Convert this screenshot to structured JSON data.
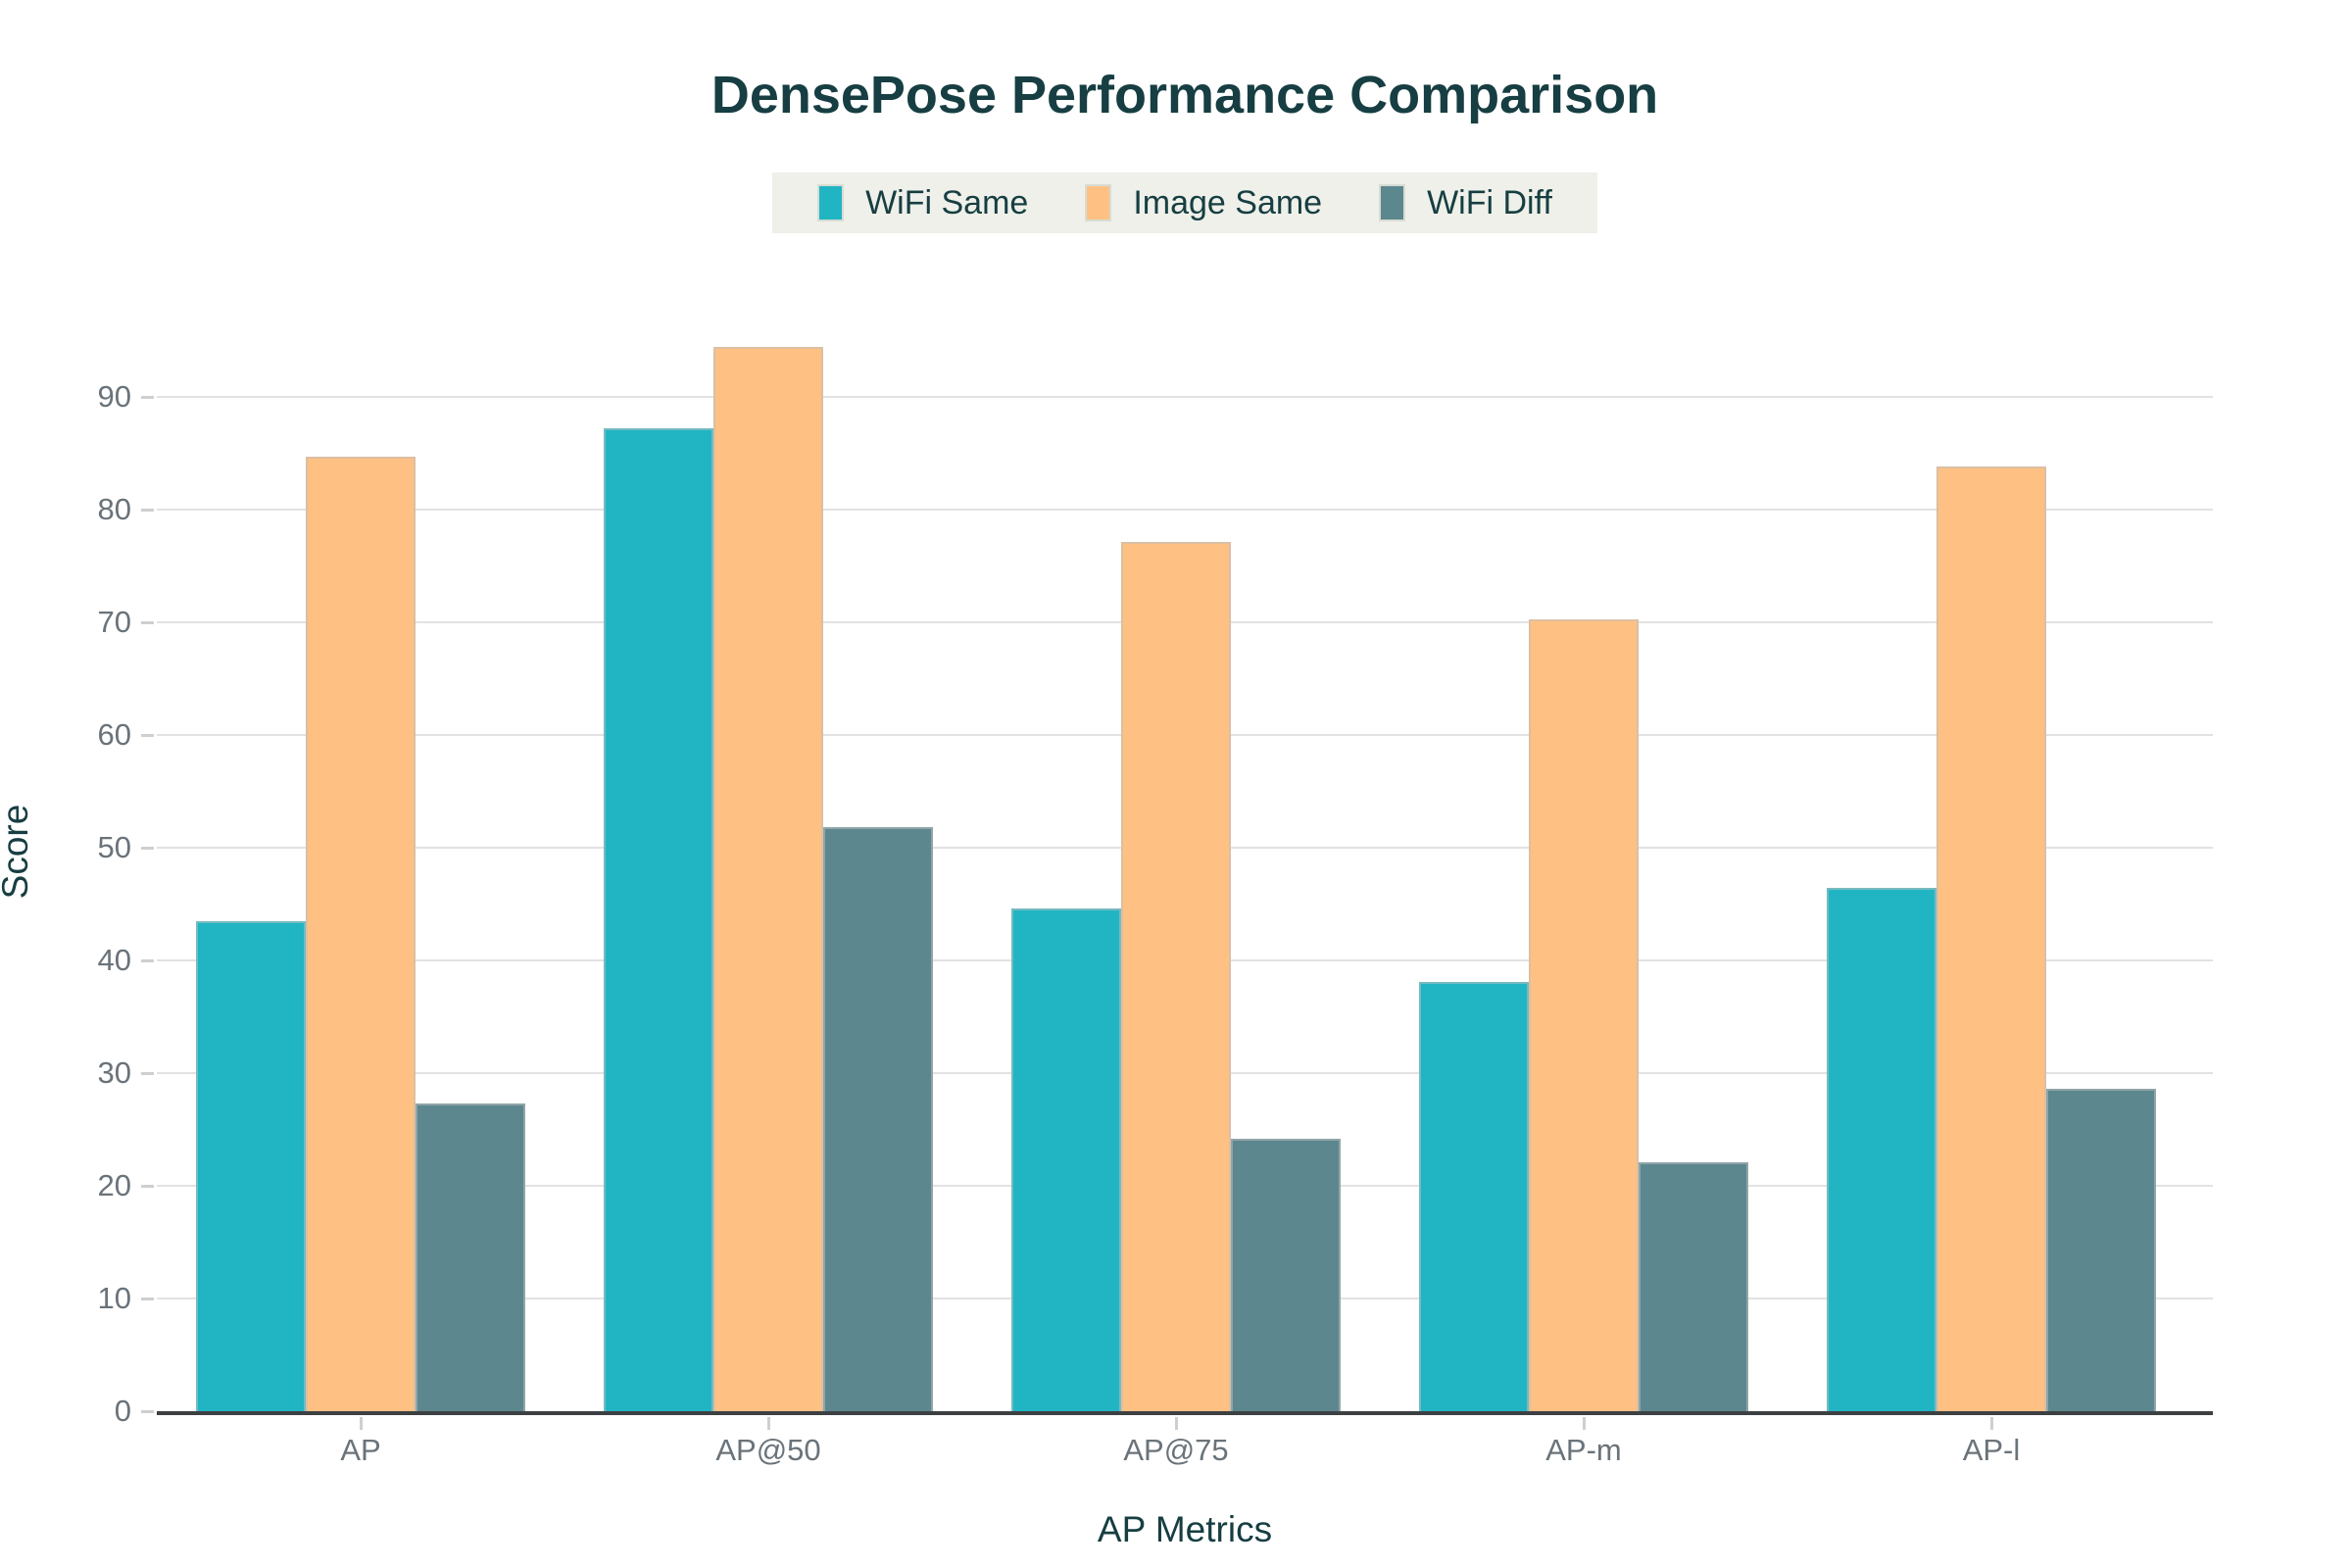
{
  "title": "DensePose Performance Comparison",
  "colors": {
    "wifi_same": "#21b5c4",
    "image_same": "#ffc183",
    "wifi_diff": "#5c878e",
    "heading_text": "#173e42",
    "tick_text": "#6a737a",
    "gridline": "#e2e2e2",
    "axis_line": "#3d4043",
    "legend_background": "#eef0e9",
    "background": "#ffffff"
  },
  "legend": {
    "items": [
      "WiFi Same",
      "Image Same",
      "WiFi Diff"
    ]
  },
  "chart_data": {
    "type": "bar",
    "title": "DensePose Performance Comparison",
    "xlabel": "AP Metrics",
    "ylabel": "Score",
    "categories": [
      "AP",
      "AP@50",
      "AP@75",
      "AP-m",
      "AP-l"
    ],
    "series": [
      {
        "name": "WiFi Same",
        "color": "#21b5c4",
        "values": [
          43.5,
          87.2,
          44.6,
          38.1,
          46.4
        ]
      },
      {
        "name": "Image Same",
        "color": "#ffc183",
        "values": [
          84.7,
          94.4,
          77.1,
          70.3,
          83.8
        ]
      },
      {
        "name": "WiFi Diff",
        "color": "#5c878e",
        "values": [
          27.3,
          51.8,
          24.2,
          22.1,
          28.6
        ]
      }
    ],
    "ylim": [
      0,
      100
    ],
    "yticks": [
      0,
      10,
      20,
      30,
      40,
      50,
      60,
      70,
      80,
      90
    ],
    "grid": true,
    "legend_position": "top-center"
  }
}
